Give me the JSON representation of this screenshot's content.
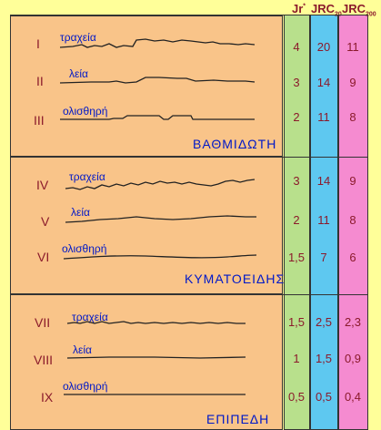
{
  "header": {
    "jr": "Jr",
    "jr_sup": "*",
    "jrc20": "JRC",
    "jrc20_sub": "20",
    "jrc200": "JRC",
    "jrc200_sub": "200"
  },
  "colors": {
    "background": "#ffff99",
    "panel": "#f9c489",
    "jr_column": "#b8e08c",
    "jrc20_column": "#5ec8f0",
    "jrc200_column": "#f58bd0",
    "text_numbers": "#8b1a2b",
    "text_labels": "#0018c8"
  },
  "groups": [
    {
      "title": "ΒΑΘΜΙΔΩΤΗ",
      "rows": [
        {
          "roman": "I",
          "label": "τραχεία",
          "jr": "4",
          "jrc20": "20",
          "jrc200": "11"
        },
        {
          "roman": "II",
          "label": "λεία",
          "jr": "3",
          "jrc20": "14",
          "jrc200": "9"
        },
        {
          "roman": "III",
          "label": "ολισθηρή",
          "jr": "2",
          "jrc20": "11",
          "jrc200": "8"
        }
      ]
    },
    {
      "title": "ΚΥΜΑΤΟΕΙΔΗΣ",
      "rows": [
        {
          "roman": "IV",
          "label": "τραχεία",
          "jr": "3",
          "jrc20": "14",
          "jrc200": "9"
        },
        {
          "roman": "V",
          "label": "λεία",
          "jr": "2",
          "jrc20": "11",
          "jrc200": "8"
        },
        {
          "roman": "VI",
          "label": "ολισθηρή",
          "jr": "1,5",
          "jrc20": "7",
          "jrc200": "6"
        }
      ]
    },
    {
      "title": "ΕΠΙΠΕΔΗ",
      "rows": [
        {
          "roman": "VII",
          "label": "τραχεία",
          "jr": "1,5",
          "jrc20": "2,5",
          "jrc200": "2,3"
        },
        {
          "roman": "VIII",
          "label": "λεία",
          "jr": "1",
          "jrc20": "1,5",
          "jrc200": "0,9"
        },
        {
          "roman": "IX",
          "label": "ολισθηρή",
          "jr": "0,5",
          "jrc20": "0,5",
          "jrc200": "0,4"
        }
      ]
    }
  ]
}
